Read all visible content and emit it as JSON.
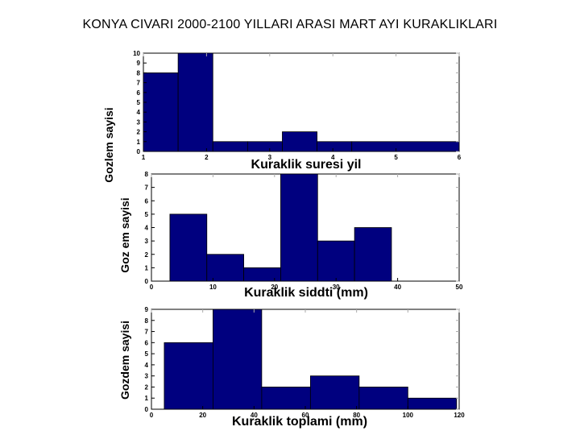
{
  "title": "KONYA CIVARI 2000-2100 YILLARI ARASI MART AYI KURAKLIKLARI",
  "colors": {
    "bar": "#00007f",
    "axis": "#000000",
    "tick": "#aaaaaa"
  },
  "chart_data": [
    {
      "type": "bar",
      "xlabel": "Kuraklik suresi yil",
      "ylabel": "Gozlem sayisi",
      "xlim": [
        1,
        6
      ],
      "ylim": [
        0,
        10
      ],
      "xticks": [
        1,
        2,
        3,
        4,
        5,
        6
      ],
      "yticks": [
        0,
        1,
        2,
        3,
        4,
        5,
        6,
        7,
        8,
        9,
        10
      ],
      "bins": [
        {
          "x0": 1.0,
          "x1": 1.55,
          "value": 8
        },
        {
          "x0": 1.55,
          "x1": 2.1,
          "value": 10
        },
        {
          "x0": 2.1,
          "x1": 2.65,
          "value": 1
        },
        {
          "x0": 2.65,
          "x1": 3.2,
          "value": 1
        },
        {
          "x0": 3.2,
          "x1": 3.75,
          "value": 2
        },
        {
          "x0": 3.75,
          "x1": 4.3,
          "value": 1
        },
        {
          "x0": 4.3,
          "x1": 6.0,
          "value": 1
        }
      ]
    },
    {
      "type": "bar",
      "xlabel": "Kuraklik siddti (mm)",
      "ylabel": "Goz em sayisi",
      "xlim": [
        0,
        50
      ],
      "ylim": [
        0,
        8
      ],
      "xticks": [
        0,
        10,
        20,
        30,
        40,
        50
      ],
      "yticks": [
        0,
        1,
        2,
        3,
        4,
        5,
        6,
        7,
        8
      ],
      "bins": [
        {
          "x0": 3.0,
          "x1": 9.0,
          "value": 5
        },
        {
          "x0": 9.0,
          "x1": 15.0,
          "value": 2
        },
        {
          "x0": 15.0,
          "x1": 21.0,
          "value": 1
        },
        {
          "x0": 21.0,
          "x1": 27.0,
          "value": 8
        },
        {
          "x0": 27.0,
          "x1": 33.0,
          "value": 3
        },
        {
          "x0": 33.0,
          "x1": 39.0,
          "value": 4
        }
      ]
    },
    {
      "type": "bar",
      "xlabel": "Kuraklik toplami (mm)",
      "ylabel": "Gozdem sayisi",
      "xlim": [
        0,
        120
      ],
      "ylim": [
        0,
        9
      ],
      "xticks": [
        0,
        20,
        40,
        60,
        80,
        100,
        120
      ],
      "yticks": [
        0,
        1,
        2,
        3,
        4,
        5,
        6,
        7,
        8,
        9
      ],
      "bins": [
        {
          "x0": 5,
          "x1": 24,
          "value": 6
        },
        {
          "x0": 24,
          "x1": 43,
          "value": 9
        },
        {
          "x0": 43,
          "x1": 62,
          "value": 2
        },
        {
          "x0": 62,
          "x1": 81,
          "value": 3
        },
        {
          "x0": 81,
          "x1": 100,
          "value": 2
        },
        {
          "x0": 100,
          "x1": 119,
          "value": 1
        }
      ]
    }
  ]
}
